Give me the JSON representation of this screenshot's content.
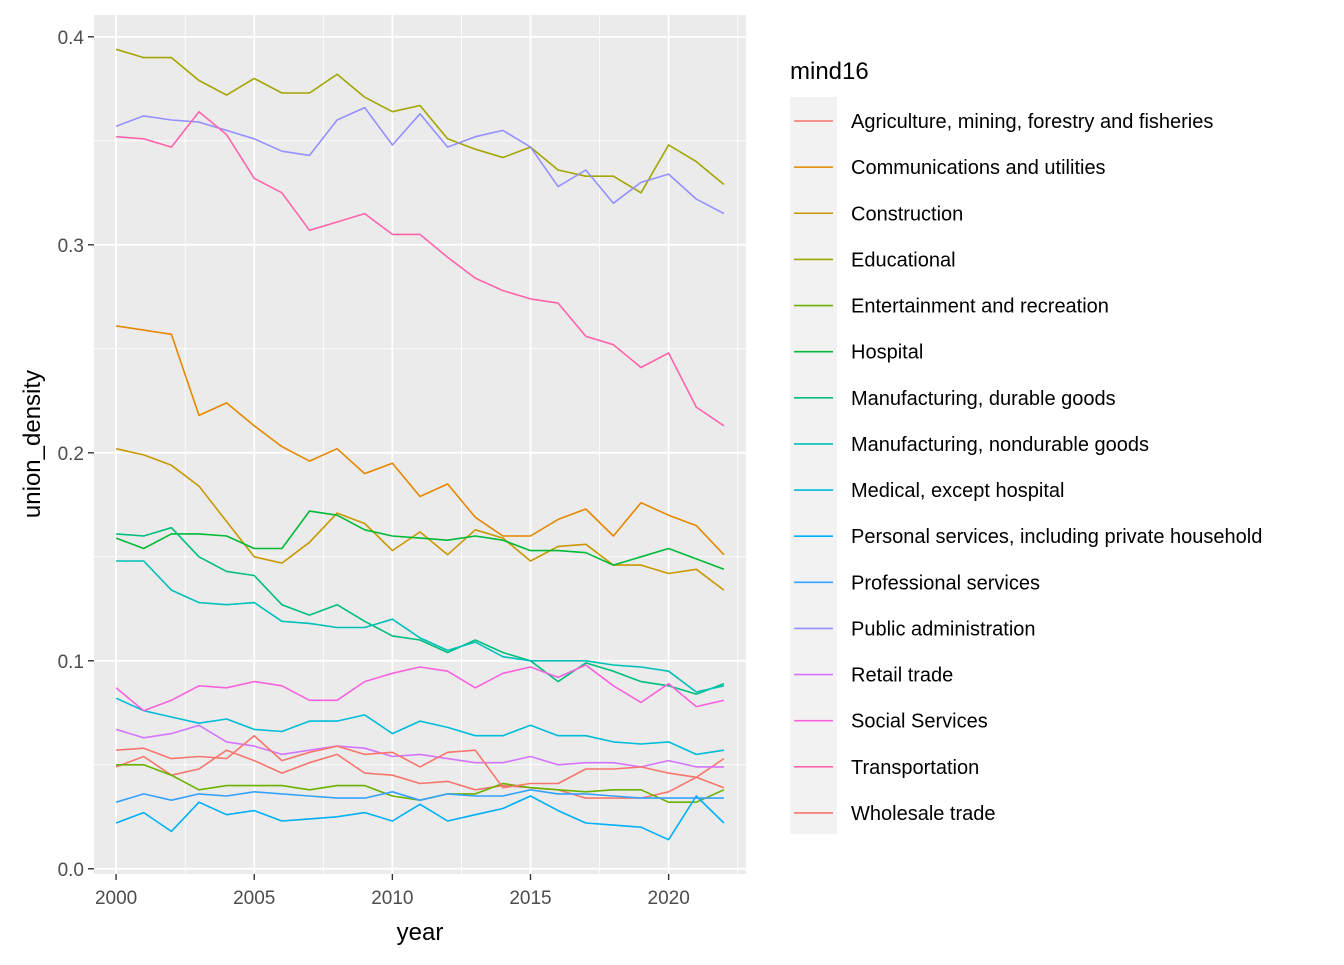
{
  "chart_data": {
    "type": "line",
    "xlabel": "year",
    "ylabel": "union_density",
    "xlim": [
      1999.2,
      2022.8
    ],
    "ylim": [
      -0.0025,
      0.4105
    ],
    "x_ticks": [
      2000,
      2005,
      2010,
      2015,
      2020
    ],
    "x_tick_labels": [
      "2000",
      "2005",
      "2010",
      "2015",
      "2020"
    ],
    "y_ticks": [
      0.0,
      0.1,
      0.2,
      0.3,
      0.4
    ],
    "y_tick_labels": [
      "0.0",
      "0.1",
      "0.2",
      "0.3",
      "0.4"
    ],
    "grid": true,
    "background": "#ebebeb",
    "legend": {
      "title": "mind16",
      "placement": "right"
    },
    "x": [
      2000,
      2001,
      2002,
      2003,
      2004,
      2005,
      2006,
      2007,
      2008,
      2009,
      2010,
      2011,
      2012,
      2013,
      2014,
      2015,
      2016,
      2017,
      2018,
      2019,
      2020,
      2021,
      2022
    ],
    "series": [
      {
        "name": "Agriculture, mining, forestry and fisheries",
        "color": "#F8766D",
        "values": [
          0.049,
          0.054,
          0.045,
          0.048,
          0.057,
          0.052,
          0.046,
          0.051,
          0.055,
          0.046,
          0.045,
          0.041,
          0.042,
          0.038,
          0.04,
          0.039,
          0.038,
          0.034,
          0.034,
          0.034,
          0.037,
          0.044,
          0.053
        ]
      },
      {
        "name": "Communications and utilities",
        "color": "#E58700",
        "values": [
          0.261,
          0.259,
          0.257,
          0.218,
          0.224,
          0.213,
          0.203,
          0.196,
          0.202,
          0.19,
          0.195,
          0.179,
          0.185,
          0.169,
          0.16,
          0.16,
          0.168,
          0.173,
          0.16,
          0.176,
          0.17,
          0.165,
          0.151
        ]
      },
      {
        "name": "Construction",
        "color": "#C99800",
        "values": [
          0.202,
          0.199,
          0.194,
          0.184,
          0.167,
          0.15,
          0.147,
          0.157,
          0.171,
          0.166,
          0.153,
          0.162,
          0.151,
          0.163,
          0.159,
          0.148,
          0.155,
          0.156,
          0.146,
          0.146,
          0.142,
          0.144,
          0.134
        ]
      },
      {
        "name": "Educational",
        "color": "#A3A500",
        "values": [
          0.394,
          0.39,
          0.39,
          0.379,
          0.372,
          0.38,
          0.373,
          0.373,
          0.382,
          0.371,
          0.364,
          0.367,
          0.351,
          0.346,
          0.342,
          0.347,
          0.336,
          0.333,
          0.333,
          0.325,
          0.348,
          0.34,
          0.329
        ]
      },
      {
        "name": "Entertainment and recreation",
        "color": "#6BB100",
        "values": [
          0.05,
          0.05,
          0.045,
          0.038,
          0.04,
          0.04,
          0.04,
          0.038,
          0.04,
          0.04,
          0.035,
          0.033,
          0.036,
          0.036,
          0.041,
          0.039,
          0.038,
          0.037,
          0.038,
          0.038,
          0.032,
          0.032,
          0.038
        ]
      },
      {
        "name": "Hospital",
        "color": "#00BA38",
        "values": [
          0.159,
          0.154,
          0.161,
          0.161,
          0.16,
          0.154,
          0.154,
          0.172,
          0.17,
          0.163,
          0.16,
          0.159,
          0.158,
          0.16,
          0.158,
          0.153,
          0.153,
          0.152,
          0.146,
          0.15,
          0.154,
          0.149,
          0.144
        ]
      },
      {
        "name": "Manufacturing, durable goods",
        "color": "#00BF7D",
        "values": [
          0.161,
          0.16,
          0.164,
          0.15,
          0.143,
          0.141,
          0.127,
          0.122,
          0.127,
          0.119,
          0.112,
          0.11,
          0.104,
          0.11,
          0.104,
          0.1,
          0.09,
          0.099,
          0.095,
          0.09,
          0.088,
          0.084,
          0.089
        ]
      },
      {
        "name": "Manufacturing, nondurable goods",
        "color": "#00C0B8",
        "values": [
          0.148,
          0.148,
          0.134,
          0.128,
          0.127,
          0.128,
          0.119,
          0.118,
          0.116,
          0.116,
          0.12,
          0.111,
          0.105,
          0.109,
          0.102,
          0.1,
          0.1,
          0.1,
          0.098,
          0.097,
          0.095,
          0.085,
          0.088
        ]
      },
      {
        "name": "Medical, except hospital",
        "color": "#00BCD8",
        "values": [
          0.082,
          0.076,
          0.073,
          0.07,
          0.072,
          0.067,
          0.066,
          0.071,
          0.071,
          0.074,
          0.065,
          0.071,
          0.068,
          0.064,
          0.064,
          0.069,
          0.064,
          0.064,
          0.061,
          0.06,
          0.061,
          0.055,
          0.057
        ]
      },
      {
        "name": "Personal services, including private household",
        "color": "#00B0F6",
        "values": [
          0.022,
          0.027,
          0.018,
          0.032,
          0.026,
          0.028,
          0.023,
          0.024,
          0.025,
          0.027,
          0.023,
          0.031,
          0.023,
          0.026,
          0.029,
          0.035,
          0.028,
          0.022,
          0.021,
          0.02,
          0.014,
          0.035,
          0.022
        ]
      },
      {
        "name": "Professional services",
        "color": "#35A2FF",
        "values": [
          0.032,
          0.036,
          0.033,
          0.036,
          0.035,
          0.037,
          0.036,
          0.035,
          0.034,
          0.034,
          0.037,
          0.033,
          0.036,
          0.035,
          0.035,
          0.038,
          0.036,
          0.036,
          0.035,
          0.034,
          0.034,
          0.034,
          0.034
        ]
      },
      {
        "name": "Public administration",
        "color": "#9590FF",
        "values": [
          0.357,
          0.362,
          0.36,
          0.359,
          0.355,
          0.351,
          0.345,
          0.343,
          0.36,
          0.366,
          0.348,
          0.363,
          0.347,
          0.352,
          0.355,
          0.347,
          0.328,
          0.336,
          0.32,
          0.33,
          0.334,
          0.322,
          0.315
        ]
      },
      {
        "name": "Retail trade",
        "color": "#D575FE",
        "values": [
          0.067,
          0.063,
          0.065,
          0.069,
          0.061,
          0.059,
          0.055,
          0.057,
          0.059,
          0.058,
          0.054,
          0.055,
          0.053,
          0.051,
          0.051,
          0.054,
          0.05,
          0.051,
          0.051,
          0.049,
          0.052,
          0.049,
          0.049
        ]
      },
      {
        "name": "Social Services",
        "color": "#F962DD",
        "values": [
          0.087,
          0.076,
          0.081,
          0.088,
          0.087,
          0.09,
          0.088,
          0.081,
          0.081,
          0.09,
          0.094,
          0.097,
          0.095,
          0.087,
          0.094,
          0.097,
          0.092,
          0.098,
          0.088,
          0.08,
          0.089,
          0.078,
          0.081
        ]
      },
      {
        "name": "Transportation",
        "color": "#FF65AC",
        "values": [
          0.352,
          0.351,
          0.347,
          0.364,
          0.353,
          0.332,
          0.325,
          0.307,
          0.311,
          0.315,
          0.305,
          0.305,
          0.294,
          0.284,
          0.278,
          0.274,
          0.272,
          0.256,
          0.252,
          0.241,
          0.248,
          0.222,
          0.213
        ]
      },
      {
        "name": "Wholesale trade",
        "color": "#F8766D",
        "values": [
          0.057,
          0.058,
          0.053,
          0.054,
          0.053,
          0.064,
          0.052,
          0.056,
          0.059,
          0.055,
          0.056,
          0.049,
          0.056,
          0.057,
          0.039,
          0.041,
          0.041,
          0.048,
          0.048,
          0.049,
          0.046,
          0.044,
          0.039
        ]
      }
    ]
  }
}
